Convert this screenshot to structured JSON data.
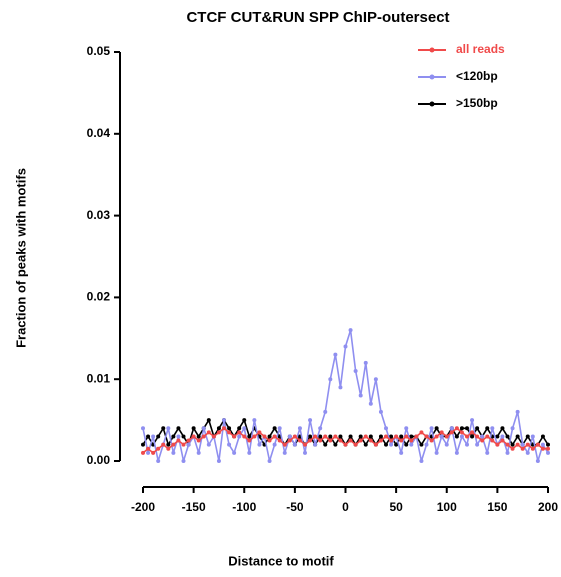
{
  "chart_data": {
    "type": "line",
    "title": "CTCF CUT&RUN SPP ChIP-outersect",
    "x_label": "Distance to motif",
    "y_label": "Fraction of peaks with motifs",
    "x": [
      -200,
      -195,
      -190,
      -185,
      -180,
      -175,
      -170,
      -165,
      -160,
      -155,
      -150,
      -145,
      -140,
      -135,
      -130,
      -125,
      -120,
      -115,
      -110,
      -105,
      -100,
      -95,
      -90,
      -85,
      -80,
      -75,
      -70,
      -65,
      -60,
      -55,
      -50,
      -45,
      -40,
      -35,
      -30,
      -25,
      -20,
      -15,
      -10,
      -5,
      0,
      5,
      10,
      15,
      20,
      25,
      30,
      35,
      40,
      45,
      50,
      55,
      60,
      65,
      70,
      75,
      80,
      85,
      90,
      95,
      100,
      105,
      110,
      115,
      120,
      125,
      130,
      135,
      140,
      145,
      150,
      155,
      160,
      165,
      170,
      175,
      180,
      185,
      190,
      195,
      200
    ],
    "series": [
      {
        "name": "all reads",
        "color": "#f04a4a",
        "values": [
          0.001,
          0.0015,
          0.001,
          0.0015,
          0.002,
          0.0015,
          0.002,
          0.0025,
          0.002,
          0.0025,
          0.003,
          0.0025,
          0.003,
          0.0035,
          0.003,
          0.0035,
          0.004,
          0.0035,
          0.003,
          0.0035,
          0.003,
          0.0025,
          0.003,
          0.0035,
          0.003,
          0.0025,
          0.003,
          0.0025,
          0.002,
          0.0025,
          0.003,
          0.0025,
          0.002,
          0.0025,
          0.003,
          0.0025,
          0.003,
          0.0025,
          0.003,
          0.0025,
          0.002,
          0.0025,
          0.002,
          0.0025,
          0.003,
          0.0025,
          0.002,
          0.0025,
          0.003,
          0.0025,
          0.003,
          0.0025,
          0.003,
          0.0025,
          0.003,
          0.0035,
          0.003,
          0.0025,
          0.003,
          0.0035,
          0.003,
          0.0035,
          0.004,
          0.0035,
          0.003,
          0.0035,
          0.003,
          0.0025,
          0.003,
          0.0025,
          0.002,
          0.0025,
          0.002,
          0.0015,
          0.002,
          0.0015,
          0.002,
          0.0015,
          0.002,
          0.0015,
          0.0015
        ]
      },
      {
        "name": "<120bp",
        "color": "#8f8ff0",
        "values": [
          0.004,
          0.001,
          0.003,
          0,
          0.002,
          0.004,
          0.001,
          0.003,
          0,
          0.002,
          0.003,
          0.001,
          0.004,
          0.002,
          0.003,
          0,
          0.005,
          0.002,
          0.001,
          0.003,
          0.004,
          0.001,
          0.005,
          0.002,
          0.003,
          0,
          0.002,
          0.004,
          0.001,
          0.003,
          0.002,
          0.004,
          0.001,
          0.005,
          0.002,
          0.004,
          0.006,
          0.01,
          0.013,
          0.009,
          0.014,
          0.016,
          0.011,
          0.008,
          0.012,
          0.007,
          0.01,
          0.006,
          0.004,
          0.002,
          0.003,
          0.001,
          0.004,
          0.002,
          0.003,
          0,
          0.002,
          0.004,
          0.001,
          0.003,
          0.002,
          0.004,
          0.001,
          0.003,
          0.002,
          0.005,
          0.002,
          0.003,
          0.001,
          0.004,
          0.002,
          0.003,
          0.001,
          0.004,
          0.006,
          0.002,
          0.001,
          0.003,
          0,
          0.002,
          0.001
        ]
      },
      {
        "name": ">150bp",
        "color": "#000000",
        "values": [
          0.002,
          0.003,
          0.002,
          0.003,
          0.004,
          0.002,
          0.003,
          0.004,
          0.003,
          0.002,
          0.004,
          0.003,
          0.004,
          0.005,
          0.003,
          0.004,
          0.005,
          0.004,
          0.003,
          0.004,
          0.005,
          0.003,
          0.004,
          0.003,
          0.002,
          0.003,
          0.004,
          0.003,
          0.002,
          0.003,
          0.002,
          0.003,
          0.002,
          0.003,
          0.002,
          0.003,
          0.002,
          0.003,
          0.002,
          0.003,
          0.002,
          0.003,
          0.002,
          0.003,
          0.002,
          0.003,
          0.002,
          0.003,
          0.002,
          0.003,
          0.002,
          0.003,
          0.002,
          0.003,
          0.003,
          0.002,
          0.003,
          0.003,
          0.004,
          0.003,
          0.003,
          0.004,
          0.003,
          0.004,
          0.004,
          0.003,
          0.004,
          0.003,
          0.004,
          0.003,
          0.003,
          0.004,
          0.003,
          0.002,
          0.003,
          0.002,
          0.003,
          0.002,
          0.002,
          0.003,
          0.002
        ]
      }
    ],
    "xlim": [
      -200,
      200
    ],
    "xticks": [
      -200,
      -150,
      -100,
      -50,
      0,
      50,
      100,
      150,
      200
    ],
    "ylim": [
      0,
      0.05
    ],
    "yticks": [
      {
        "value": 0,
        "label": "0.00"
      },
      {
        "value": 0.01,
        "label": "0.01"
      },
      {
        "value": 0.02,
        "label": "0.02"
      },
      {
        "value": 0.03,
        "label": "0.03"
      },
      {
        "value": 0.04,
        "label": "0.04"
      },
      {
        "value": 0.05,
        "label": "0.05"
      }
    ],
    "legend": "upper right"
  }
}
